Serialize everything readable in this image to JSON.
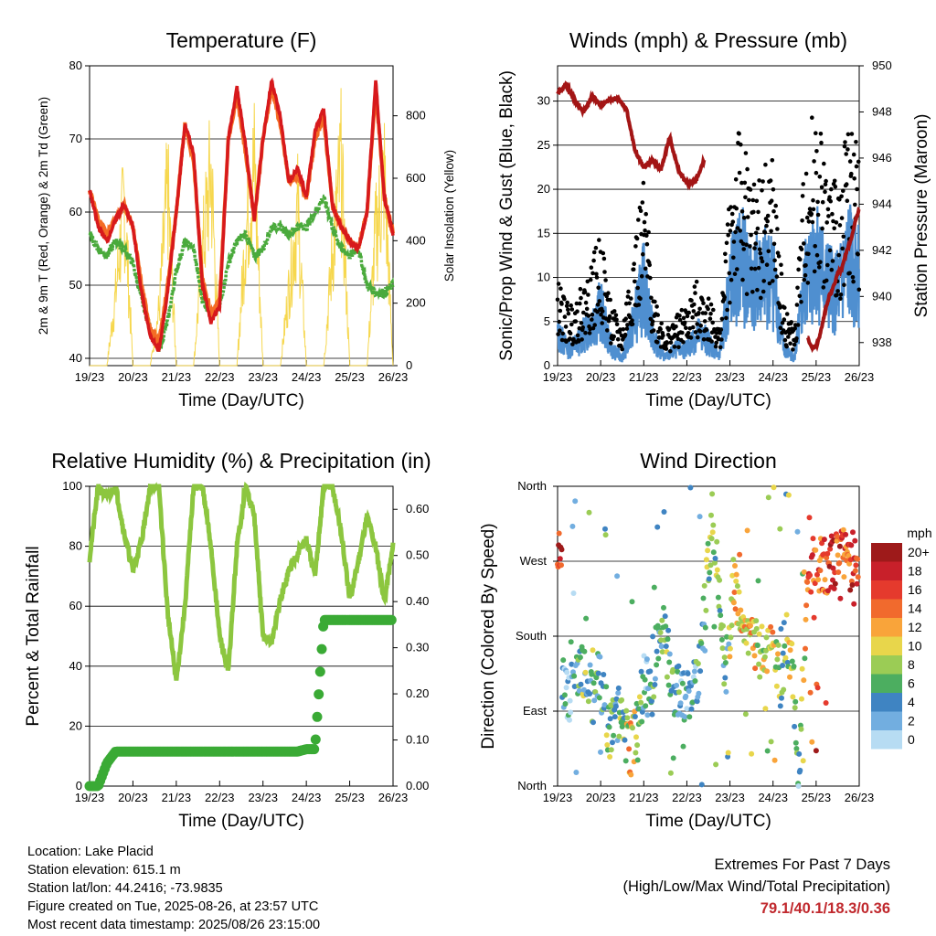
{
  "x_ticks": [
    "19/23",
    "20/23",
    "21/23",
    "22/23",
    "23/23",
    "24/23",
    "25/23",
    "26/23"
  ],
  "x_label": "Time (Day/UTC)",
  "colors": {
    "red": "#d7191c",
    "orange": "#f46d25",
    "green": "#4aaa3c",
    "yellow": "#f5d33b",
    "maroon": "#a31515",
    "black": "#000000",
    "blue": "#4f8fd0",
    "rh": "#8cc63f",
    "precip": "#3aaa35",
    "extremes": "#c0282d"
  },
  "chart_data": [
    {
      "type": "line",
      "title": "Temperature (F)",
      "ylabel": "2m & 9m T (Red, Orange) & 2m Td (Green)",
      "ylabel_right": "Solar Insolation (Yellow)",
      "ylim": [
        39,
        80
      ],
      "yticks": [
        40,
        50,
        60,
        70,
        80
      ],
      "ylim_right": [
        0,
        960
      ],
      "yticks_right": [
        0,
        200,
        400,
        600,
        800
      ],
      "x_days": [
        0,
        0.2,
        0.4,
        0.6,
        0.8,
        1.0,
        1.2,
        1.4,
        1.6,
        1.8,
        2.0,
        2.2,
        2.4,
        2.6,
        2.8,
        3.0,
        3.2,
        3.4,
        3.6,
        3.8,
        4.0,
        4.2,
        4.4,
        4.6,
        4.8,
        5.0,
        5.2,
        5.4,
        5.6,
        5.8,
        6.0,
        6.2,
        6.4,
        6.6,
        6.8,
        7.0
      ],
      "series": [
        {
          "name": "2m T",
          "values": [
            63,
            58,
            56,
            59,
            61,
            58,
            49,
            43,
            41,
            49,
            60,
            72,
            68,
            50,
            45,
            47,
            70,
            77,
            69,
            59,
            70,
            78,
            73,
            64,
            66,
            62,
            71,
            74,
            61,
            58,
            56,
            55,
            60,
            78,
            62,
            57
          ]
        },
        {
          "name": "9m T",
          "values": [
            63,
            59,
            57,
            59,
            61,
            58,
            50,
            44,
            42,
            50,
            60,
            72,
            67,
            51,
            46,
            48,
            70,
            76,
            68,
            59,
            70,
            77,
            72,
            64,
            65,
            62,
            70,
            73,
            61,
            58,
            56,
            55,
            60,
            77,
            62,
            57
          ]
        },
        {
          "name": "2m Td",
          "values": [
            57,
            55,
            54,
            56,
            55,
            53,
            48,
            44,
            41,
            45,
            52,
            56,
            55,
            48,
            46,
            47,
            53,
            56,
            57,
            54,
            55,
            58,
            58,
            57,
            58,
            58,
            60,
            62,
            58,
            55,
            54,
            55,
            50,
            49,
            49,
            50
          ]
        },
        {
          "name": "Solar",
          "values": [
            0,
            0,
            0,
            320,
            750,
            0,
            0,
            0,
            250,
            800,
            0,
            0,
            0,
            500,
            880,
            0,
            0,
            0,
            600,
            900,
            0,
            0,
            0,
            350,
            700,
            0,
            0,
            0,
            500,
            900,
            0,
            0,
            0,
            600,
            850,
            0
          ]
        }
      ]
    },
    {
      "type": "scatter",
      "title": "Winds (mph) & Pressure (mb)",
      "ylabel": "Sonic/Prop Wind & Gust (Blue, Black)",
      "ylabel_right": "Station Pressure (Maroon)",
      "ylim": [
        0,
        34
      ],
      "yticks": [
        0,
        5,
        10,
        15,
        20,
        25,
        30
      ],
      "ylim_right": [
        937,
        950
      ],
      "yticks_right": [
        938,
        940,
        942,
        944,
        946,
        948,
        950
      ],
      "x_days": [
        0,
        0.25,
        0.5,
        0.75,
        1.0,
        1.25,
        1.5,
        1.75,
        2.0,
        2.25,
        2.5,
        2.75,
        3.0,
        3.25,
        3.5,
        3.75,
        4.0,
        4.25,
        4.5,
        4.75,
        5.0,
        5.25,
        5.5,
        5.75,
        6.0,
        6.25,
        6.5,
        6.75,
        7.0
      ],
      "series": [
        {
          "name": "Gust",
          "values": [
            7,
            5,
            6,
            8,
            11,
            5,
            3,
            10,
            15,
            6,
            3,
            4,
            5,
            7,
            6,
            3,
            15,
            20,
            15,
            16,
            17,
            5,
            3,
            18,
            22,
            16,
            15,
            21,
            18
          ]
        },
        {
          "name": "Wind",
          "values": [
            4,
            2,
            3,
            5,
            7,
            2,
            1,
            5,
            10,
            3,
            1,
            2,
            2,
            4,
            3,
            1,
            10,
            13,
            10,
            11,
            11,
            2,
            1,
            10,
            14,
            10,
            9,
            13,
            11
          ]
        },
        {
          "name": "Pressure",
          "x": [
            0,
            0.2,
            0.4,
            0.6,
            0.8,
            1.0,
            1.2,
            1.4,
            1.6,
            1.8,
            2.0,
            2.2,
            2.4,
            2.6,
            2.8,
            3.0,
            3.2,
            3.4
          ],
          "values": [
            948.8,
            949.2,
            948.5,
            948,
            948.7,
            948.3,
            948.5,
            948.6,
            948.1,
            946.3,
            945.6,
            945.9,
            945.5,
            946.9,
            945.5,
            944.9,
            945,
            945.9
          ]
        },
        {
          "name": "Pressure2",
          "x": [
            5.8,
            5.9,
            6.0,
            6.1,
            6.2,
            6.3,
            6.4,
            6.5,
            6.6,
            6.7,
            6.8,
            6.9,
            7.0
          ],
          "values": [
            938.2,
            937.8,
            937.8,
            938.4,
            939.3,
            940,
            940.4,
            941,
            941.2,
            941.9,
            942.4,
            943.2,
            943.8
          ]
        }
      ]
    },
    {
      "type": "line",
      "title": "Relative Humidity (%) & Precipitation (in)",
      "ylabel": "Percent & Total Rainfall",
      "ylim": [
        0,
        100
      ],
      "yticks": [
        0,
        20,
        40,
        60,
        80,
        100
      ],
      "ylim_right": [
        0,
        0.65
      ],
      "yticks_right": [
        "0.00",
        "0.10",
        "0.20",
        "0.30",
        "0.40",
        "0.50",
        "0.60"
      ],
      "x_days": [
        0,
        0.2,
        0.4,
        0.6,
        0.8,
        1.0,
        1.2,
        1.4,
        1.6,
        1.8,
        2.0,
        2.2,
        2.4,
        2.6,
        2.8,
        3.0,
        3.2,
        3.4,
        3.6,
        3.8,
        4.0,
        4.2,
        4.4,
        4.6,
        4.8,
        5.0,
        5.2,
        5.4,
        5.6,
        5.8,
        6.0,
        6.2,
        6.4,
        6.6,
        6.8,
        7.0
      ],
      "series": [
        {
          "name": "RH",
          "values": [
            76,
            100,
            96,
            100,
            84,
            72,
            82,
            100,
            100,
            58,
            35,
            60,
            100,
            100,
            80,
            50,
            38,
            80,
            100,
            90,
            50,
            48,
            62,
            72,
            78,
            82,
            70,
            100,
            100,
            85,
            62,
            75,
            90,
            80,
            62,
            80
          ]
        },
        {
          "name": "Precip",
          "values": [
            0,
            0,
            0.05,
            0.075,
            0.075,
            0.075,
            0.075,
            0.075,
            0.075,
            0.075,
            0.075,
            0.075,
            0.075,
            0.075,
            0.075,
            0.075,
            0.075,
            0.075,
            0.075,
            0.075,
            0.075,
            0.075,
            0.075,
            0.075,
            0.075,
            0.08,
            0.08,
            0.36,
            0.36,
            0.36,
            0.36,
            0.36,
            0.36,
            0.36,
            0.36,
            0.36
          ]
        }
      ]
    },
    {
      "type": "scatter",
      "title": "Wind Direction",
      "ylabel": "Direction (Colored By Speed)",
      "yticks": [
        "North",
        "East",
        "South",
        "West",
        "North"
      ],
      "legend_title": "mph",
      "legend_labels": [
        "20+",
        "18",
        "16",
        "14",
        "12",
        "10",
        "8",
        "6",
        "4",
        "2",
        "0"
      ],
      "legend_colors": [
        "#9e1a1a",
        "#c8202a",
        "#e53a2d",
        "#f16a2d",
        "#f9a43a",
        "#e8d64b",
        "#9bcc55",
        "#4cae60",
        "#3f84c2",
        "#72aee0",
        "#b7dcf3"
      ],
      "x_days": [
        0.1,
        0.3,
        0.5,
        0.8,
        1.0,
        1.2,
        1.4,
        1.7,
        2.0,
        2.2,
        2.4,
        2.7,
        3.0,
        3.3,
        3.6,
        3.9,
        4.1,
        4.3,
        4.5,
        4.8,
        5.0,
        5.2,
        5.4,
        5.6,
        5.8,
        6.0,
        6.2,
        6.4,
        6.6,
        6.8,
        6.95
      ],
      "direction_deg": [
        120,
        110,
        150,
        100,
        130,
        60,
        90,
        40,
        120,
        120,
        200,
        120,
        110,
        140,
        330,
        130,
        250,
        180,
        170,
        160,
        180,
        120,
        180,
        20,
        250,
        270,
        265,
        270,
        275,
        270,
        270
      ],
      "speed": [
        3,
        2,
        5,
        6,
        4,
        8,
        5,
        10,
        3,
        4,
        6,
        5,
        3,
        5,
        8,
        4,
        12,
        10,
        12,
        8,
        11,
        6,
        9,
        3,
        14,
        16,
        14,
        18,
        15,
        16,
        17
      ]
    }
  ],
  "info": {
    "location": "Location: Lake Placid",
    "elevation": "Station elevation: 615.1 m",
    "latlon": "Station lat/lon: 44.2416; -73.9835",
    "created": "Figure created on Tue, 2025-08-26, at 23:57 UTC",
    "recent": "Most recent data timestamp: 2025/08/26 23:15:00"
  },
  "extremes": {
    "title": "Extremes For Past 7 Days",
    "subtitle": "(High/Low/Max Wind/Total Precipitation)",
    "values": "79.1/40.1/18.3/0.36"
  }
}
